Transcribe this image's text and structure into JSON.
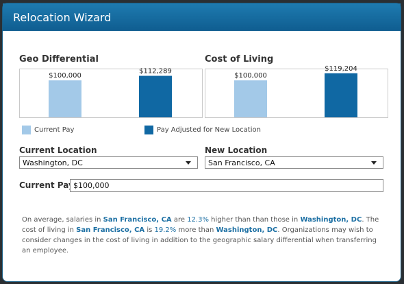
{
  "window": {
    "title": "Relocation Wizard"
  },
  "colors": {
    "current_pay": "#a3c9e8",
    "adjusted_pay": "#1068a3",
    "titlebar": "#1669a0",
    "highlight": "#1c6fa3"
  },
  "geo_chart": {
    "heading": "Geo Differential",
    "chart_data": {
      "type": "bar",
      "categories": [
        "Current Pay",
        "Pay Adjusted for New Location"
      ],
      "values": [
        100000,
        112289
      ],
      "labels": [
        "$100,000",
        "$112,289"
      ]
    }
  },
  "col_chart": {
    "heading": "Cost of Living",
    "chart_data": {
      "type": "bar",
      "categories": [
        "Current Pay",
        "Pay Adjusted for New Location"
      ],
      "values": [
        100000,
        119204
      ],
      "labels": [
        "$100,000",
        "$119,204"
      ]
    }
  },
  "legend": {
    "current": "Current Pay",
    "adjusted": "Pay Adjusted for New Location"
  },
  "form": {
    "current_location_label": "Current Location",
    "current_location_value": "Washington, DC",
    "new_location_label": "New Location",
    "new_location_value": "San Francisco, CA",
    "current_pay_label": "Current Pay",
    "current_pay_value": "$100,000"
  },
  "summary": {
    "p1": "On average, salaries in ",
    "city_new": "San Francisco, CA",
    "p2": " are ",
    "geo_pct": "12.3%",
    "p3": " higher than than those in ",
    "city_current": "Washington, DC",
    "p4": ". The cost of living in ",
    "p5": " is ",
    "col_pct": "19.2%",
    "p6": " more than ",
    "p7": ". Organizations may wish to consider changes in the cost of living in addition to the geographic salary differential when transferring an employee."
  }
}
